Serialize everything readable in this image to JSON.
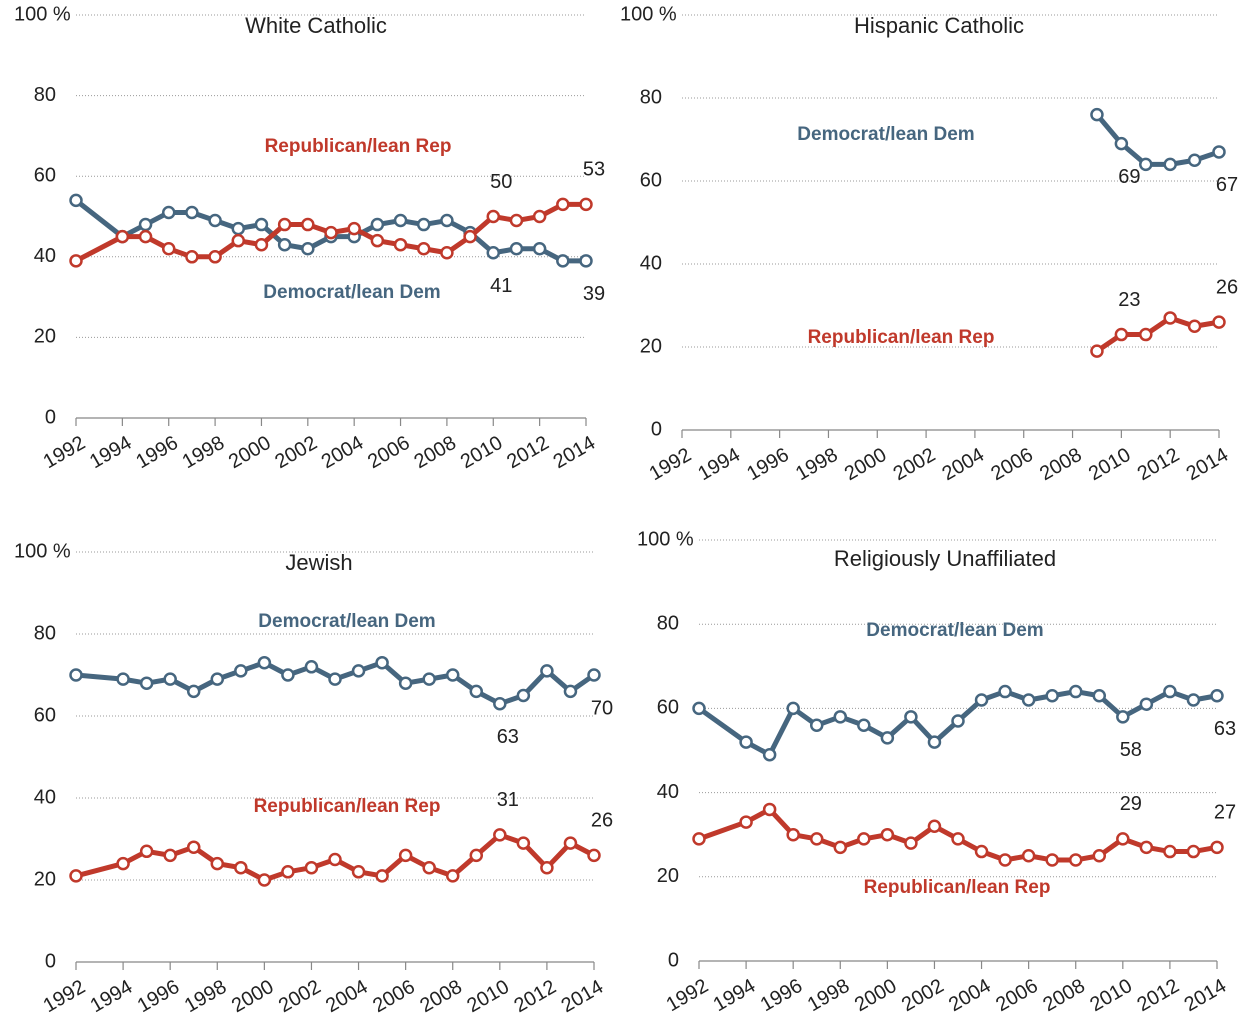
{
  "chart_data": [
    {
      "type": "line",
      "title": "White Catholic",
      "x": [
        1992,
        1994,
        1995,
        1996,
        1997,
        1998,
        1999,
        2000,
        2001,
        2002,
        2003,
        2004,
        2005,
        2006,
        2007,
        2008,
        2009,
        2010,
        2011,
        2012,
        2013,
        2014
      ],
      "series": [
        {
          "name": "Democrat/lean Dem",
          "color": "#46667f",
          "values": [
            54,
            45,
            48,
            51,
            51,
            49,
            47,
            48,
            43,
            42,
            45,
            45,
            48,
            49,
            48,
            49,
            46,
            41,
            42,
            42,
            39,
            39
          ],
          "labeled_points": [
            17,
            21
          ]
        },
        {
          "name": "Republican/lean Rep",
          "color": "#c0392b",
          "values": [
            39,
            45,
            45,
            42,
            40,
            40,
            44,
            43,
            48,
            48,
            46,
            47,
            44,
            43,
            42,
            41,
            45,
            50,
            49,
            50,
            53,
            53
          ],
          "labeled_points": [
            17,
            21
          ]
        }
      ],
      "xlim": [
        1992,
        2014
      ],
      "xticks": [
        1992,
        1994,
        1996,
        1998,
        2000,
        2002,
        2004,
        2006,
        2008,
        2010,
        2012,
        2014
      ],
      "ylim": [
        0,
        100
      ],
      "yticks": [
        0,
        20,
        40,
        60,
        80,
        {
          "value": 100,
          "label": "100 %"
        }
      ],
      "grid": true
    },
    {
      "type": "line",
      "title": "Hispanic Catholic",
      "x": [
        2009,
        2010,
        2011,
        2012,
        2013,
        2014
      ],
      "series": [
        {
          "name": "Democrat/lean Dem",
          "color": "#46667f",
          "values": [
            76,
            69,
            64,
            64,
            65,
            67
          ],
          "labeled_points": [
            1,
            5
          ]
        },
        {
          "name": "Republican/lean Rep",
          "color": "#c0392b",
          "values": [
            19,
            23,
            23,
            27,
            25,
            26
          ],
          "labeled_points": [
            1,
            5
          ]
        }
      ],
      "xlim": [
        1992,
        2014
      ],
      "xticks": [
        1992,
        1994,
        1996,
        1998,
        2000,
        2002,
        2004,
        2006,
        2008,
        2010,
        2012,
        2014
      ],
      "ylim": [
        0,
        100
      ],
      "yticks": [
        0,
        20,
        40,
        60,
        80,
        {
          "value": 100,
          "label": "100 %"
        }
      ],
      "grid": true
    },
    {
      "type": "line",
      "title": "Jewish",
      "x": [
        1992,
        1994,
        1995,
        1996,
        1997,
        1998,
        1999,
        2000,
        2001,
        2002,
        2003,
        2004,
        2005,
        2006,
        2007,
        2008,
        2009,
        2010,
        2011,
        2012,
        2013,
        2014
      ],
      "series": [
        {
          "name": "Democrat/lean Dem",
          "color": "#46667f",
          "values": [
            70,
            69,
            68,
            69,
            66,
            69,
            71,
            73,
            70,
            72,
            69,
            71,
            73,
            68,
            69,
            70,
            66,
            63,
            65,
            71,
            66,
            70
          ],
          "labeled_points": [
            17,
            21
          ]
        },
        {
          "name": "Republican/lean Rep",
          "color": "#c0392b",
          "values": [
            21,
            24,
            27,
            26,
            28,
            24,
            23,
            20,
            22,
            23,
            25,
            22,
            21,
            26,
            23,
            21,
            26,
            31,
            29,
            23,
            29,
            26
          ],
          "labeled_points": [
            17,
            21
          ]
        }
      ],
      "xlim": [
        1992,
        2014
      ],
      "xticks": [
        1992,
        1994,
        1996,
        1998,
        2000,
        2002,
        2004,
        2006,
        2008,
        2010,
        2012,
        2014
      ],
      "ylim": [
        0,
        100
      ],
      "yticks": [
        0,
        20,
        40,
        60,
        80,
        {
          "value": 100,
          "label": "100 %"
        }
      ],
      "grid": true
    },
    {
      "type": "line",
      "title": "Religiously Unaffiliated",
      "x": [
        1992,
        1994,
        1995,
        1996,
        1997,
        1998,
        1999,
        2000,
        2001,
        2002,
        2003,
        2004,
        2005,
        2006,
        2007,
        2008,
        2009,
        2010,
        2011,
        2012,
        2013,
        2014
      ],
      "series": [
        {
          "name": "Democrat/lean Dem",
          "color": "#46667f",
          "values": [
            60,
            52,
            49,
            60,
            56,
            58,
            56,
            53,
            58,
            52,
            57,
            62,
            64,
            62,
            63,
            64,
            63,
            58,
            61,
            64,
            62,
            63
          ],
          "labeled_points": [
            17,
            21
          ]
        },
        {
          "name": "Republican/lean Rep",
          "color": "#c0392b",
          "values": [
            29,
            33,
            36,
            30,
            29,
            27,
            29,
            30,
            28,
            32,
            29,
            26,
            24,
            25,
            24,
            24,
            25,
            29,
            27,
            26,
            26,
            27
          ],
          "labeled_points": [
            17,
            21
          ]
        }
      ],
      "xlim": [
        1992,
        2014
      ],
      "xticks": [
        1992,
        1994,
        1996,
        1998,
        2000,
        2002,
        2004,
        2006,
        2008,
        2010,
        2012,
        2014
      ],
      "ylim": [
        0,
        100
      ],
      "yticks": [
        0,
        20,
        40,
        60,
        80,
        {
          "value": 100,
          "label": "100 %"
        }
      ],
      "grid": true
    }
  ]
}
